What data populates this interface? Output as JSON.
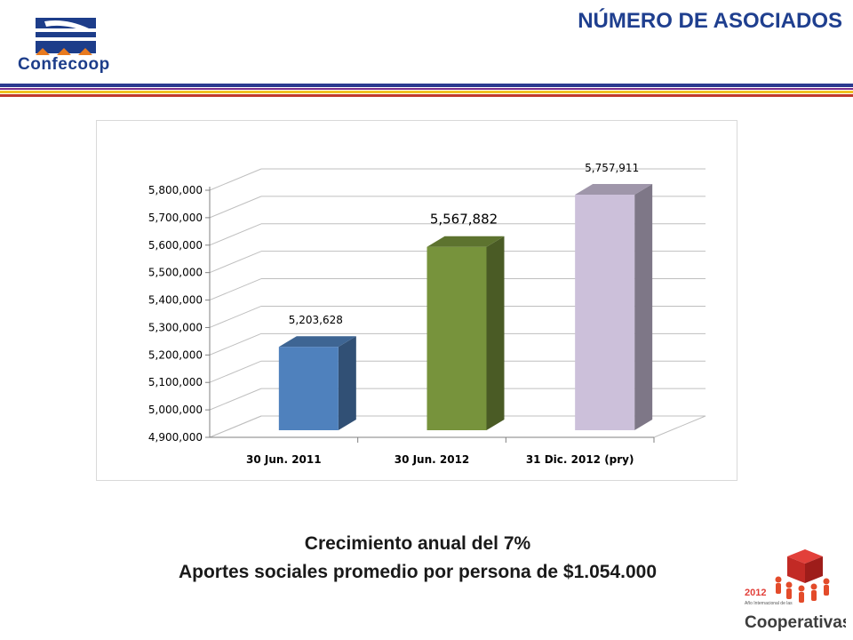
{
  "header": {
    "logo_text": "Confecoop",
    "page_title": "NÚMERO DE ASOCIADOS"
  },
  "chart_data": {
    "type": "bar",
    "categories": [
      "30 Jun. 2011",
      "30 Jun. 2012",
      "31 Dic. 2012 (pry)"
    ],
    "values": [
      5203628,
      5567882,
      5757911
    ],
    "value_labels": [
      "5,203,628",
      "5,567,882",
      "5,757,911"
    ],
    "ylim": [
      4900000,
      5800000
    ],
    "yticks": [
      4900000,
      5000000,
      5100000,
      5200000,
      5300000,
      5400000,
      5500000,
      5600000,
      5700000,
      5800000
    ],
    "ytick_labels": [
      "4,900,000",
      "5,000,000",
      "5,100,000",
      "5,200,000",
      "5,300,000",
      "5,400,000",
      "5,500,000",
      "5,600,000",
      "5,700,000",
      "5,800,000"
    ],
    "colors": [
      "#4f81bd",
      "#77933c",
      "#ccc0da"
    ],
    "style": "3d-column",
    "grid": true,
    "legend": "none"
  },
  "footer": {
    "line1": "Crecimiento anual del 7%",
    "line2": "Aportes sociales promedio por persona de $1.054.000"
  },
  "corner_logo": {
    "year": "2012",
    "small_text": "Año Internacional de las",
    "name": "Cooperativas"
  }
}
